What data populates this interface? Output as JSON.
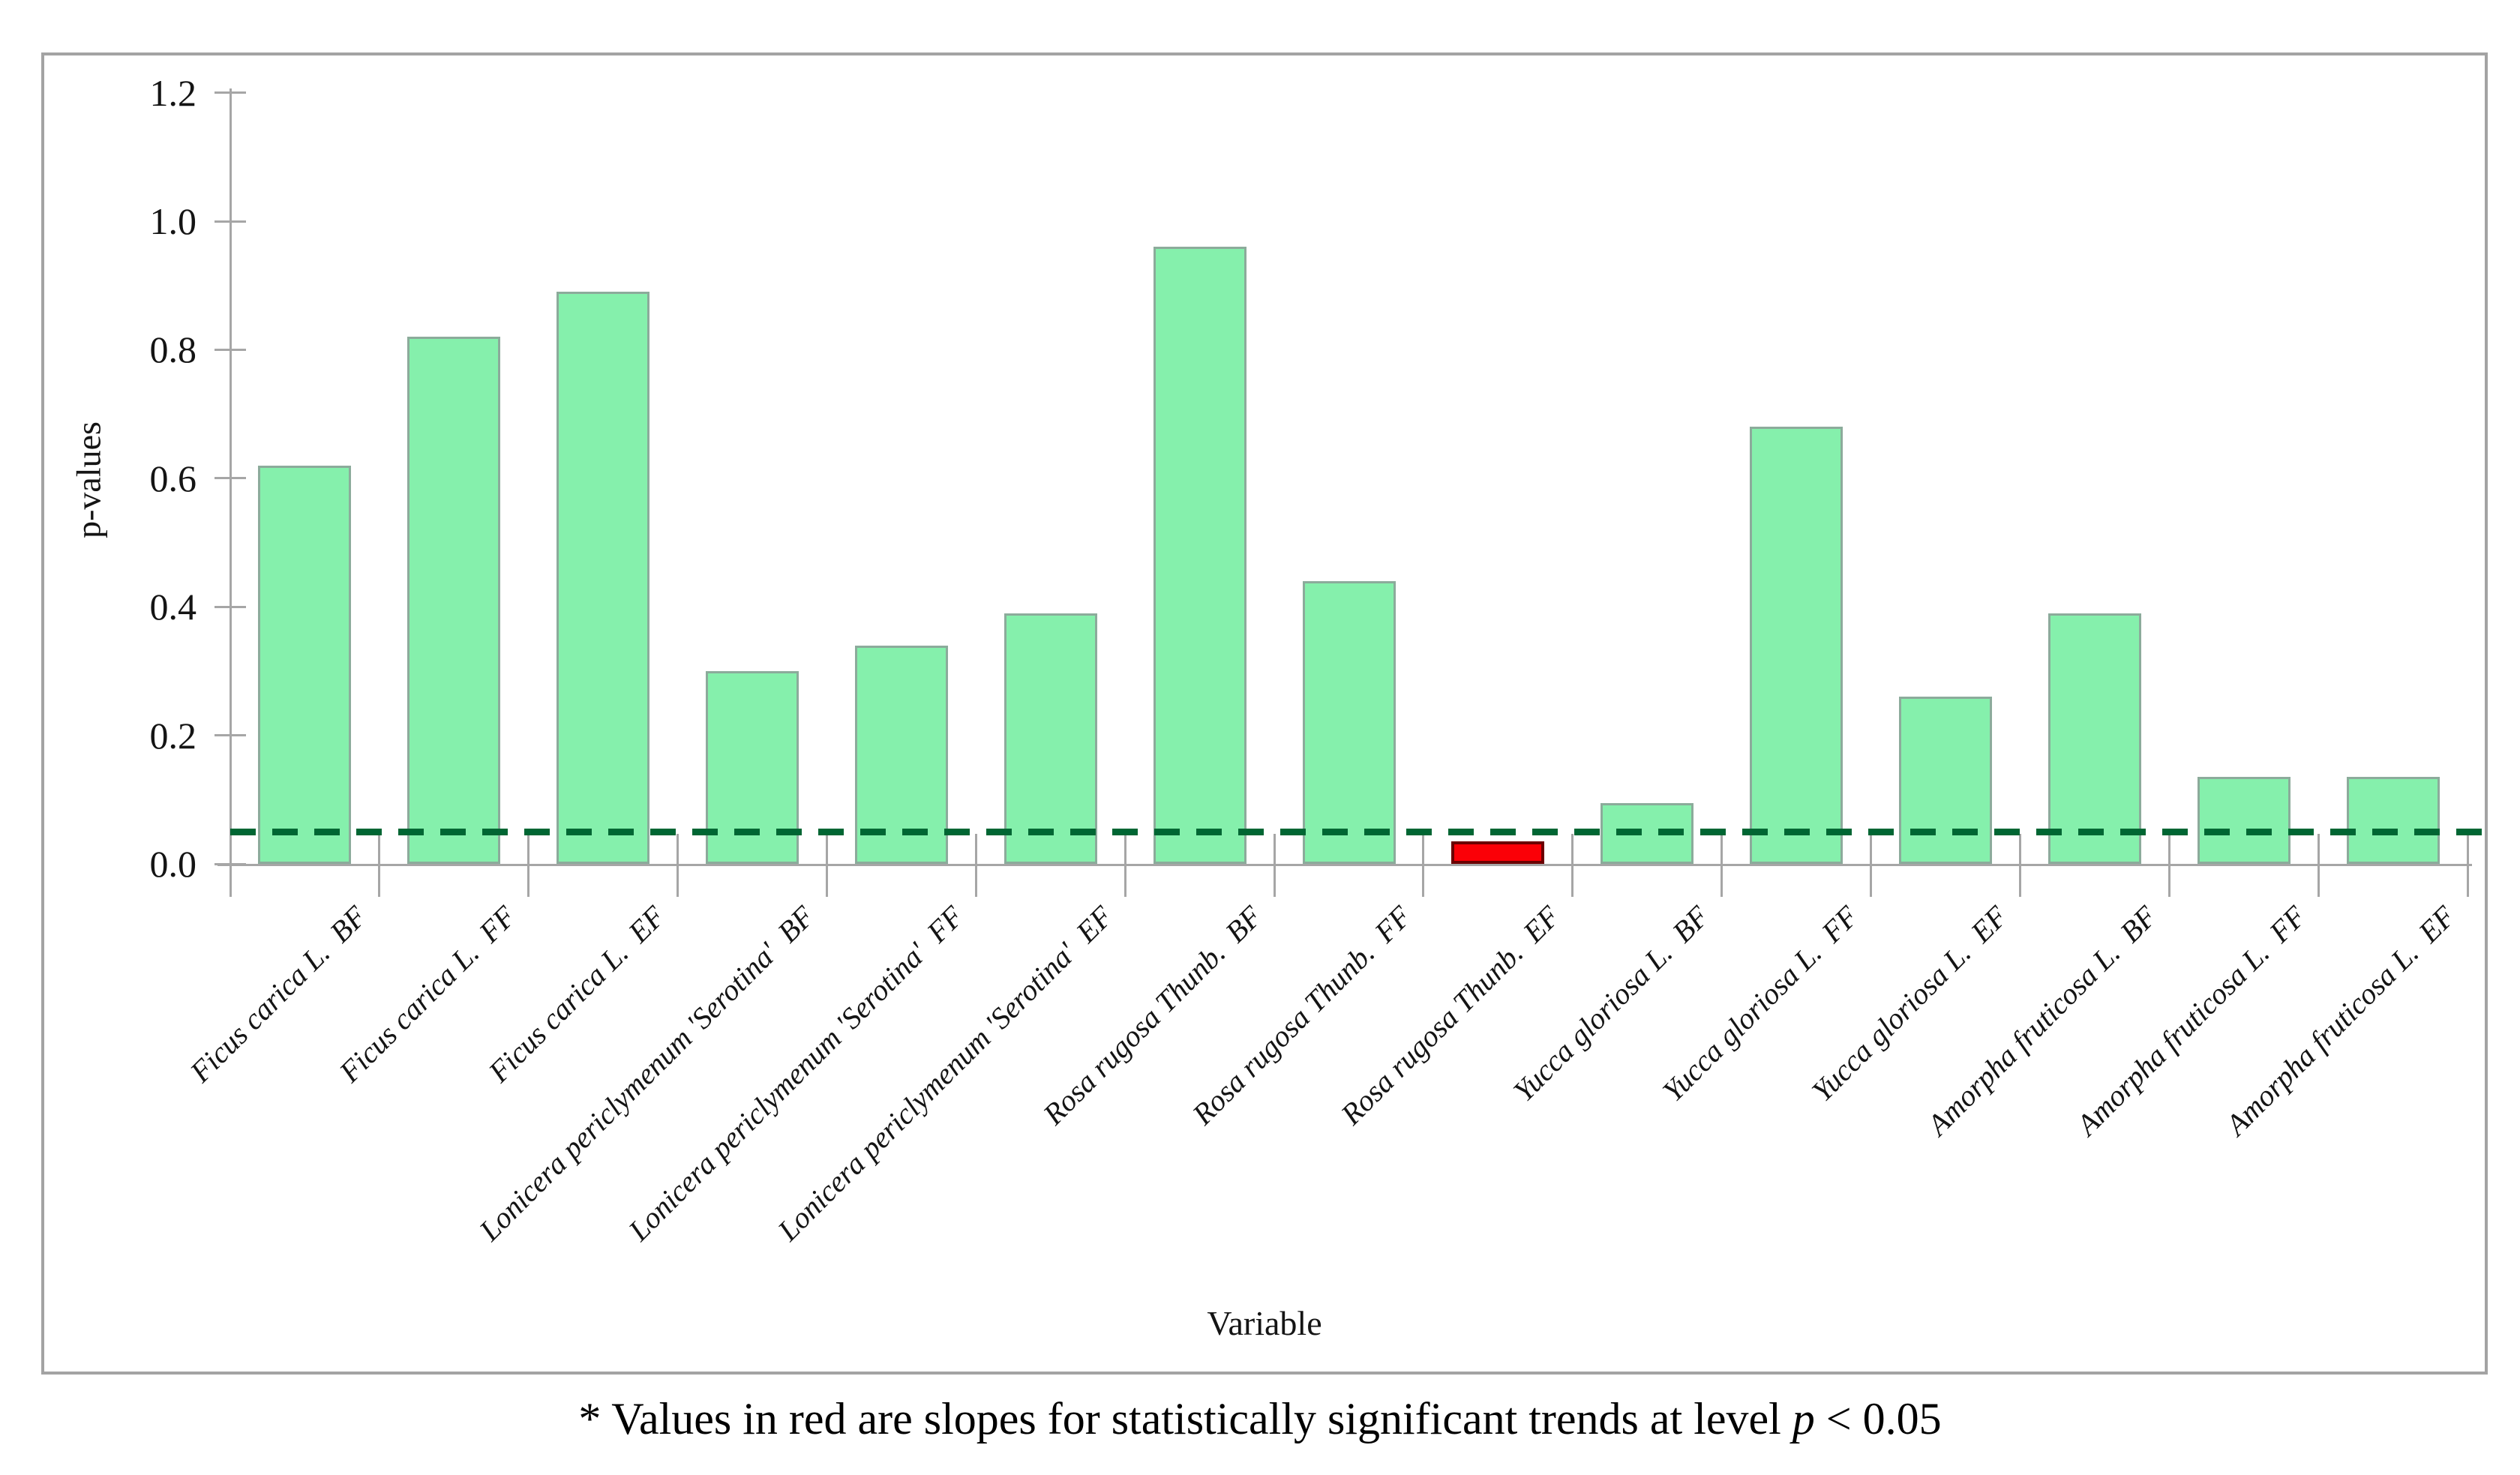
{
  "chart_data": {
    "type": "bar",
    "title": "",
    "xlabel": "Variable",
    "ylabel": "p-values",
    "ylim": [
      0,
      1.2
    ],
    "y_ticks": [
      "0.0",
      "0.2",
      "0.4",
      "0.6",
      "0.8",
      "1.0",
      "1.2"
    ],
    "grid": "off",
    "legend": "none",
    "categories": [
      "Ficus carica L.  BF",
      "Ficus carica L.  FF",
      "Ficus carica L.  EF",
      "Lonicera periclymenum 'Serotina'  BF",
      "Lonicera periclymenum 'Serotina'  FF",
      "Lonicera periclymenum 'Serotina'  EF",
      "Rosa rugosa Thunb.  BF",
      "Rosa rugosa Thunb.  FF",
      "Rosa rugosa Thunb.  EF",
      "Yucca gloriosa L.  BF",
      "Yucca gloriosa L.  FF",
      "Yucca gloriosa L.  EF",
      "Amorpha fruticosa L.  BF",
      "Amorpha fruticosa L.  FF",
      "Amorpha fruticosa L.  EF"
    ],
    "values": [
      0.62,
      0.82,
      0.89,
      0.3,
      0.34,
      0.39,
      0.96,
      0.44,
      0.035,
      0.095,
      0.68,
      0.26,
      0.39,
      0.135,
      0.135
    ],
    "significant_indices": [
      8
    ],
    "threshold_line": {
      "value": 0.05,
      "style": "dashed"
    },
    "colors": {
      "bar_fill": "#85f0ac",
      "bar_border": "#8cab9b",
      "significant_fill": "#fb0007",
      "significant_border": "#6b0000",
      "threshold": "#006633",
      "axis": "#a6a6a6",
      "frame": "#a3a3a3"
    }
  },
  "caption": {
    "prefix": "* Values in red are slopes for statistically significant trends at level ",
    "italic": "p",
    "suffix": " < 0.05"
  }
}
